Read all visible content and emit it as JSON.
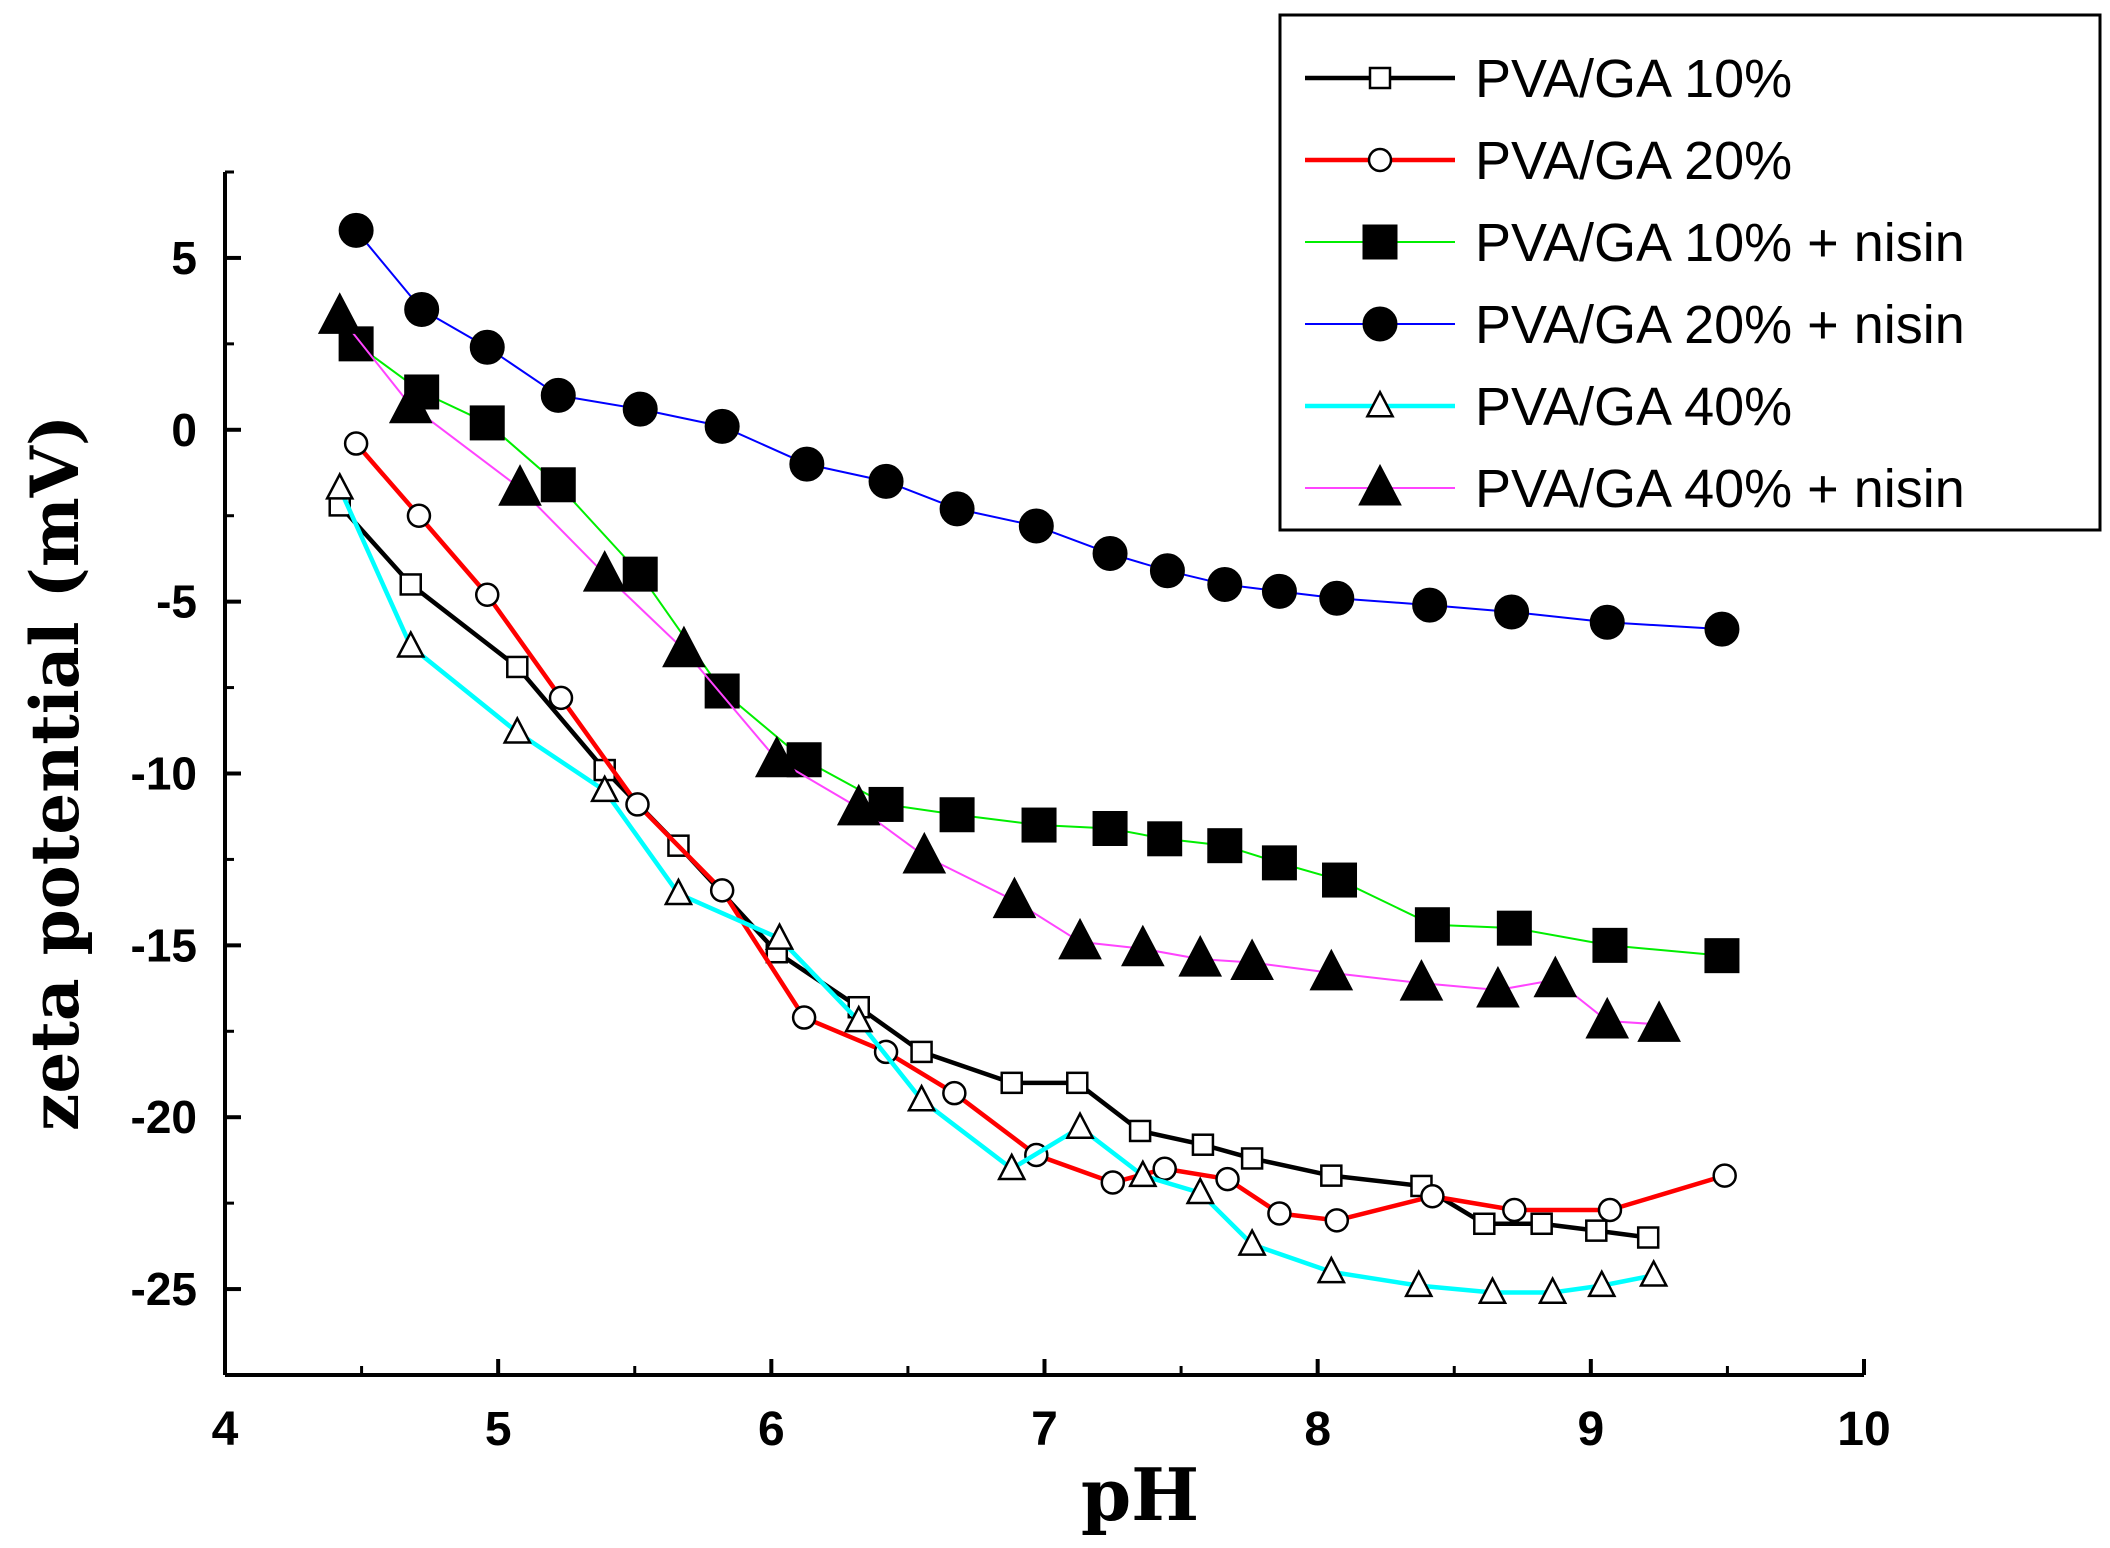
{
  "chart_data": {
    "type": "line",
    "title": "",
    "xlabel": "pH",
    "ylabel": "zeta potential (mV)",
    "xlim": [
      4,
      10
    ],
    "ylim": [
      -27.5,
      7.5
    ],
    "x_ticks": [
      4,
      5,
      6,
      7,
      8,
      9,
      10
    ],
    "y_ticks": [
      5,
      0,
      -5,
      -10,
      -15,
      -20,
      -25
    ],
    "x_tick_labels": [
      "4",
      "5",
      "6",
      "7",
      "8",
      "9",
      "10"
    ],
    "y_tick_labels": [
      "5",
      "0",
      "-5",
      "-10",
      "-15",
      "-20",
      "-25"
    ],
    "legend_position": "top-right",
    "series": [
      {
        "name": "PVA/GA 10%",
        "color": "#000000",
        "marker": "square-open",
        "thick": true,
        "x": [
          4.42,
          4.68,
          5.07,
          5.39,
          5.66,
          6.02,
          6.32,
          6.55,
          6.88,
          7.12,
          7.35,
          7.58,
          7.76,
          8.05,
          8.38,
          8.61,
          8.82,
          9.02,
          9.21
        ],
        "y": [
          -2.2,
          -4.5,
          -6.9,
          -9.9,
          -12.1,
          -15.2,
          -16.8,
          -18.1,
          -19.0,
          -19.0,
          -20.4,
          -20.8,
          -21.2,
          -21.7,
          -22.0,
          -23.1,
          -23.1,
          -23.3,
          -23.5
        ]
      },
      {
        "name": "PVA/GA 20%",
        "color": "#ff0000",
        "marker": "circle-open",
        "thick": true,
        "x": [
          4.48,
          4.71,
          4.96,
          5.23,
          5.51,
          5.82,
          6.12,
          6.42,
          6.67,
          6.97,
          7.25,
          7.44,
          7.67,
          7.86,
          8.07,
          8.42,
          8.72,
          9.07,
          9.49
        ],
        "y": [
          -0.4,
          -2.5,
          -4.8,
          -7.8,
          -10.9,
          -13.4,
          -17.1,
          -18.1,
          -19.3,
          -21.1,
          -21.9,
          -21.5,
          -21.8,
          -22.8,
          -23.0,
          -22.3,
          -22.7,
          -22.7,
          -21.7
        ]
      },
      {
        "name": "PVA/GA 10% + nisin",
        "color": "#00ee00",
        "marker": "square-filled",
        "thick": false,
        "x": [
          4.48,
          4.72,
          4.96,
          5.22,
          5.52,
          5.82,
          6.12,
          6.42,
          6.68,
          6.98,
          7.24,
          7.44,
          7.66,
          7.86,
          8.08,
          8.42,
          8.72,
          9.07,
          9.48
        ],
        "y": [
          2.5,
          1.1,
          0.2,
          -1.6,
          -4.2,
          -7.6,
          -9.6,
          -10.9,
          -11.2,
          -11.5,
          -11.6,
          -11.9,
          -12.1,
          -12.6,
          -13.1,
          -14.4,
          -14.5,
          -15.0,
          -15.3
        ]
      },
      {
        "name": "PVA/GA 20% + nisin",
        "color": "#0000ff",
        "marker": "circle-filled",
        "thick": false,
        "x": [
          4.48,
          4.72,
          4.96,
          5.22,
          5.52,
          5.82,
          6.13,
          6.42,
          6.68,
          6.97,
          7.24,
          7.45,
          7.66,
          7.86,
          8.07,
          8.41,
          8.71,
          9.06,
          9.48
        ],
        "y": [
          5.8,
          3.5,
          2.4,
          1.0,
          0.6,
          0.1,
          -1.0,
          -1.5,
          -2.3,
          -2.8,
          -3.6,
          -4.1,
          -4.5,
          -4.7,
          -4.9,
          -5.1,
          -5.3,
          -5.6,
          -5.8
        ]
      },
      {
        "name": "PVA/GA 40%",
        "color": "#00ffff",
        "marker": "triangle-open",
        "thick": true,
        "x": [
          4.42,
          4.68,
          5.07,
          5.39,
          5.66,
          6.03,
          6.32,
          6.55,
          6.88,
          7.13,
          7.36,
          7.57,
          7.76,
          8.05,
          8.37,
          8.64,
          8.86,
          9.04,
          9.23
        ],
        "y": [
          -1.7,
          -6.3,
          -8.8,
          -10.5,
          -13.5,
          -14.8,
          -17.2,
          -19.5,
          -21.5,
          -20.3,
          -21.7,
          -22.2,
          -23.7,
          -24.5,
          -24.9,
          -25.1,
          -25.1,
          -24.9,
          -24.6
        ]
      },
      {
        "name": "PVA/GA 40% + nisin",
        "color": "#ff44ff",
        "marker": "triangle-filled",
        "thick": false,
        "x": [
          4.42,
          4.68,
          5.08,
          5.39,
          5.68,
          6.02,
          6.32,
          6.56,
          6.89,
          7.13,
          7.36,
          7.57,
          7.76,
          8.05,
          8.38,
          8.66,
          8.87,
          9.06,
          9.25
        ],
        "y": [
          3.3,
          0.7,
          -1.7,
          -4.2,
          -6.4,
          -9.6,
          -11.0,
          -12.4,
          -13.7,
          -14.9,
          -15.1,
          -15.4,
          -15.5,
          -15.8,
          -16.1,
          -16.3,
          -16.0,
          -17.2,
          -17.3
        ]
      }
    ]
  }
}
